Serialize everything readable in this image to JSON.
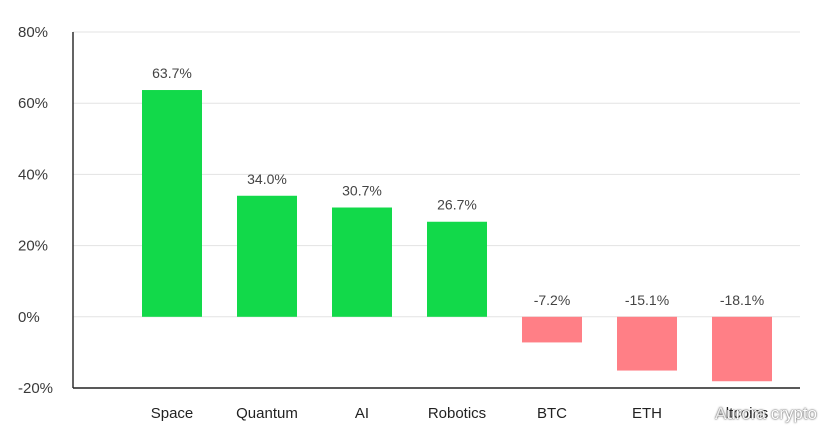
{
  "chart_data": {
    "type": "bar",
    "title": "",
    "xlabel": "",
    "ylabel": "",
    "categories": [
      "Space",
      "Quantum",
      "AI",
      "Robotics",
      "BTC",
      "ETH",
      "Altcoins"
    ],
    "values": [
      63.7,
      34.0,
      30.7,
      26.7,
      -7.2,
      -15.1,
      -18.1
    ],
    "value_labels": [
      "63.7%",
      "34.0%",
      "30.7%",
      "26.7%",
      "-7.2%",
      "-15.1%",
      "-18.1%"
    ],
    "ylim": [
      -20,
      80
    ],
    "yticks": [
      -20,
      0,
      20,
      40,
      60,
      80
    ],
    "ytick_labels": [
      "-20%",
      "0%",
      "20%",
      "40%",
      "60%",
      "80%"
    ],
    "grid": "horizontal",
    "colors": {
      "positive": "#12d94a",
      "negative": "#ff7f86"
    }
  },
  "watermark": {
    "text": "Aurora crypto",
    "icon": "binance-logo-icon"
  }
}
